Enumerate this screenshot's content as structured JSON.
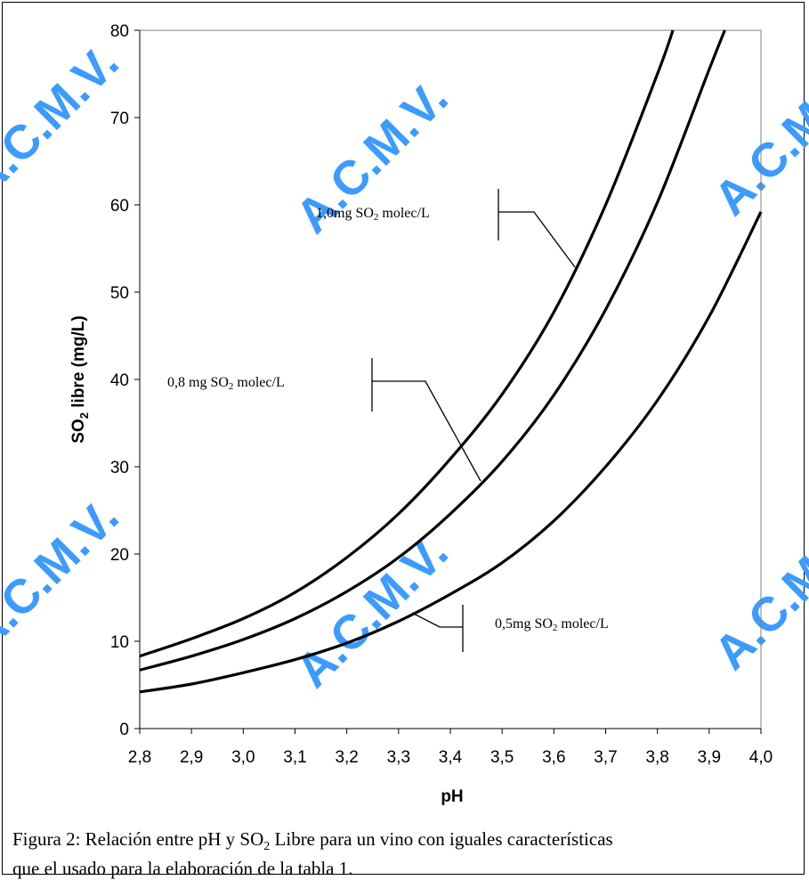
{
  "chart_data": {
    "type": "line",
    "xlabel": "pH",
    "ylabel_main": "SO",
    "ylabel_sub": "2",
    "ylabel_rest": " libre (mg/L)",
    "xlim": [
      2.8,
      4.0
    ],
    "ylim": [
      0,
      80
    ],
    "x_ticks": [
      "2,8",
      "2,9",
      "3,0",
      "3,1",
      "3,2",
      "3,3",
      "3,4",
      "3,5",
      "3,6",
      "3,7",
      "3,8",
      "3,9",
      "4,0"
    ],
    "y_ticks": [
      "0",
      "10",
      "20",
      "30",
      "40",
      "50",
      "60",
      "70",
      "80"
    ],
    "grid": false,
    "line_color": "#000000",
    "series": [
      {
        "label_pre": "1,0mg SO",
        "label_sub": "2",
        "label_post": " molec/L",
        "x": [
          2.8,
          2.9,
          3.0,
          3.1,
          3.2,
          3.3,
          3.4,
          3.5,
          3.6,
          3.7,
          3.8,
          3.83
        ],
        "y": [
          8.3,
          10.3,
          12.6,
          15.6,
          19.6,
          24.6,
          30.9,
          38.3,
          47.7,
          60.0,
          75.0,
          80.0
        ]
      },
      {
        "label_pre": "0,8 mg SO",
        "label_sub": "2",
        "label_post": " molec/L",
        "x": [
          2.8,
          2.9,
          3.0,
          3.1,
          3.2,
          3.3,
          3.4,
          3.5,
          3.6,
          3.7,
          3.8,
          3.9,
          3.93
        ],
        "y": [
          6.7,
          8.3,
          10.2,
          12.6,
          15.7,
          19.6,
          24.6,
          30.6,
          38.2,
          48.0,
          60.3,
          75.5,
          80.0
        ]
      },
      {
        "label_pre": "0,5mg SO",
        "label_sub": "2",
        "label_post": " molec/L",
        "x": [
          2.8,
          2.9,
          3.0,
          3.1,
          3.2,
          3.3,
          3.4,
          3.5,
          3.6,
          3.7,
          3.8,
          3.9,
          4.0
        ],
        "y": [
          4.2,
          5.1,
          6.4,
          7.9,
          9.8,
          12.3,
          15.4,
          19.0,
          23.8,
          30.0,
          37.6,
          47.2,
          59.2
        ]
      }
    ]
  },
  "watermark": {
    "text": "A.C.M.V.",
    "color": "#3b9bff"
  },
  "caption": {
    "line1_pre": "Figura 2: Relación entre pH y SO",
    "line1_sub": "2",
    "line1_post": " Libre para un vino con iguales características",
    "line2": "que el usado para la elaboración de la tabla 1."
  }
}
